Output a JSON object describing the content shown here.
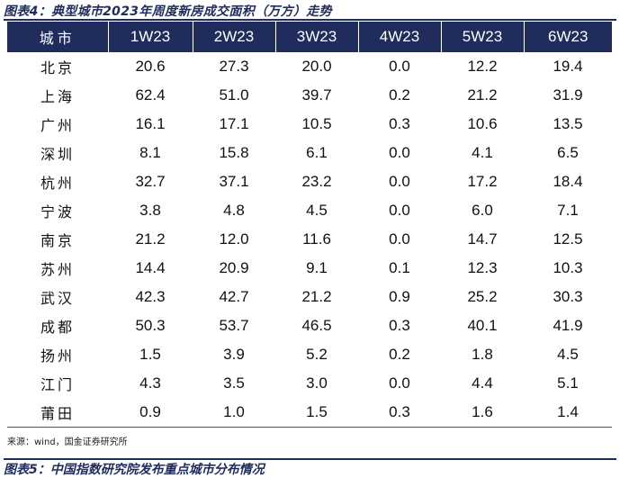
{
  "figure": {
    "title": "图表4：典型城市2023年周度新房成交面积（万方）走势",
    "source": "来源：wind，国金证券研究所",
    "next_title": "图表5：中国指数研究院发布重点城市分布情况"
  },
  "table": {
    "headers": [
      "城市",
      "1W23",
      "2W23",
      "3W23",
      "4W23",
      "5W23",
      "6W23"
    ],
    "rows": [
      [
        "北京",
        "20.6",
        "27.3",
        "20.0",
        "0.0",
        "12.2",
        "19.4"
      ],
      [
        "上海",
        "62.4",
        "51.0",
        "39.7",
        "0.2",
        "21.2",
        "31.9"
      ],
      [
        "广州",
        "16.1",
        "17.1",
        "10.5",
        "0.3",
        "10.6",
        "13.5"
      ],
      [
        "深圳",
        "8.1",
        "15.8",
        "6.1",
        "0.0",
        "4.1",
        "6.5"
      ],
      [
        "杭州",
        "32.7",
        "37.1",
        "23.2",
        "0.0",
        "17.2",
        "18.4"
      ],
      [
        "宁波",
        "3.8",
        "4.8",
        "4.5",
        "0.0",
        "6.0",
        "7.1"
      ],
      [
        "南京",
        "21.2",
        "12.0",
        "11.6",
        "0.0",
        "14.7",
        "12.5"
      ],
      [
        "苏州",
        "14.4",
        "20.9",
        "9.1",
        "0.1",
        "12.3",
        "10.3"
      ],
      [
        "武汉",
        "42.3",
        "42.7",
        "21.2",
        "0.9",
        "25.2",
        "30.3"
      ],
      [
        "成都",
        "50.3",
        "53.7",
        "46.5",
        "0.3",
        "40.1",
        "41.9"
      ],
      [
        "扬州",
        "1.5",
        "3.9",
        "5.2",
        "0.2",
        "1.8",
        "4.5"
      ],
      [
        "江门",
        "4.3",
        "3.5",
        "3.0",
        "0.0",
        "4.4",
        "5.1"
      ],
      [
        "莆田",
        "0.9",
        "1.0",
        "1.5",
        "0.3",
        "1.6",
        "1.4"
      ]
    ]
  },
  "colors": {
    "header_bg": "#1f2c5c",
    "header_text": "#ffffff",
    "title_text": "#1f2c5c"
  }
}
